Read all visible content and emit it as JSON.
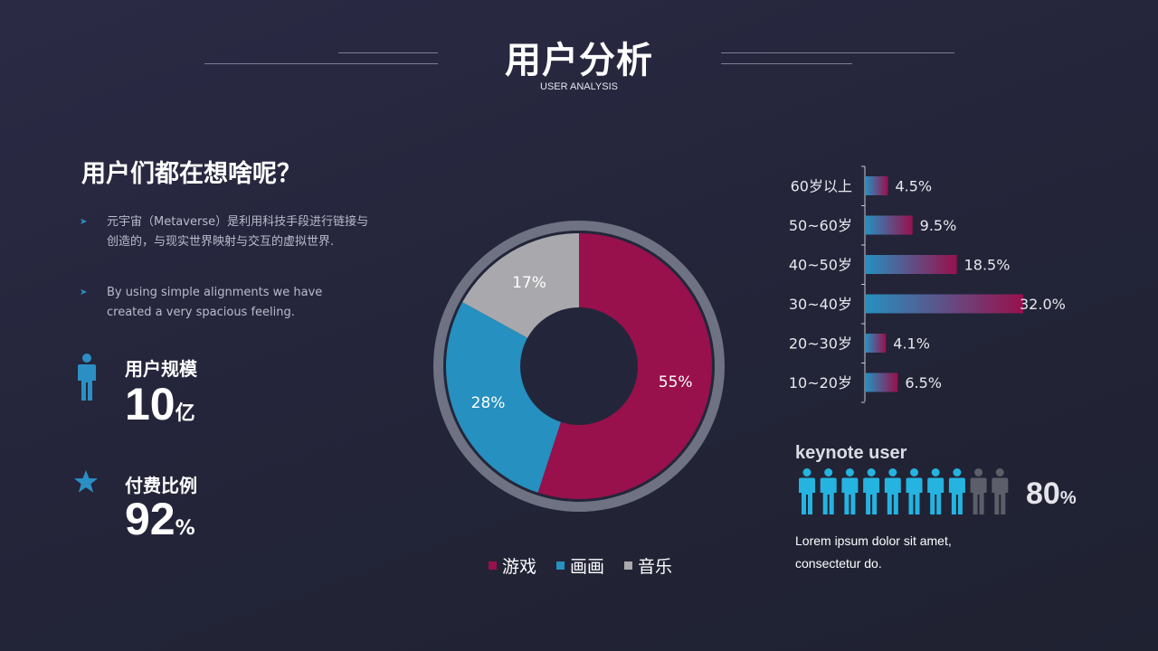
{
  "header": {
    "title": "用户分析",
    "subtitle": "USER ANALYSIS"
  },
  "left": {
    "question": "用户们都在想啥呢？",
    "bullets": [
      "元宇宙（Metaverse）是利用科技手段进行链接与创造的，与现实世界映射与交互的虚拟世界.",
      "By using simple alignments we have created a very spacious feeling."
    ],
    "stats": [
      {
        "label": "用户规模",
        "value": "10",
        "unit": "亿",
        "icon": "person-icon"
      },
      {
        "label": "付费比例",
        "value": "92",
        "unit": "%",
        "icon": "star-icon"
      }
    ]
  },
  "colors": {
    "magenta": "#98104c",
    "blue": "#2690c0",
    "gray": "#a9a9ad",
    "ring": "#6e7283",
    "icon_blue": "#2b8fc4",
    "person_cyan": "#25b3e0",
    "person_gray": "#5c5e69"
  },
  "chart_data": [
    {
      "type": "pie",
      "labels": [
        "游戏",
        "画画",
        "音乐"
      ],
      "values": [
        55,
        28,
        17
      ],
      "value_labels": [
        "55%",
        "28%",
        "17%"
      ],
      "colors": [
        "#98104c",
        "#2690c0",
        "#a9a9ad"
      ],
      "legend": "bottom"
    },
    {
      "type": "bar",
      "orientation": "horizontal",
      "categories": [
        "60岁以上",
        "50~60岁",
        "40~50岁",
        "30~40岁",
        "20~30岁",
        "10~20岁"
      ],
      "values": [
        4.5,
        9.5,
        18.5,
        32.0,
        4.1,
        6.5
      ],
      "value_labels": [
        "4.5%",
        "9.5%",
        "18.5%",
        "32.0%",
        "4.1%",
        "6.5%"
      ],
      "xlim": [
        0,
        32
      ]
    }
  ],
  "keynote": {
    "title": "keynote user",
    "value": "80",
    "unit": "%",
    "highlighted": 8,
    "total": 10,
    "note": "Lorem ipsum dolor sit amet, consectetur do."
  }
}
